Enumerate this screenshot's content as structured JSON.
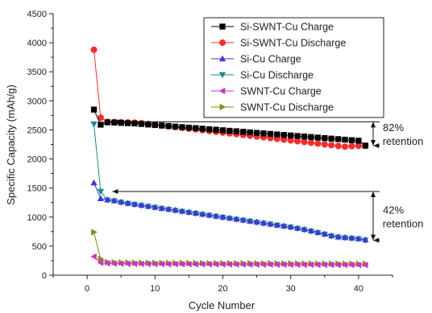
{
  "chart_data": {
    "type": "scatter",
    "xlabel": "Cycle Number",
    "ylabel": "Specific Capacity (mAh/g)",
    "xlim": [
      -5,
      45
    ],
    "ylim": [
      0,
      4500
    ],
    "xticks": [
      0,
      10,
      20,
      30,
      40
    ],
    "yticks": [
      0,
      500,
      1000,
      1500,
      2000,
      2500,
      3000,
      3500,
      4000,
      4500
    ],
    "grid": false,
    "legend_position": "top-right",
    "series": [
      {
        "name": "Si-SWNT-Cu Charge",
        "color": "#000000",
        "marker": "square",
        "x": [
          1,
          2,
          3,
          4,
          5,
          6,
          7,
          8,
          9,
          10,
          11,
          12,
          13,
          14,
          15,
          16,
          17,
          18,
          19,
          20,
          21,
          22,
          23,
          24,
          25,
          26,
          27,
          28,
          29,
          30,
          31,
          32,
          33,
          34,
          35,
          36,
          37,
          38,
          39,
          40,
          41
        ],
        "y": [
          2850,
          2590,
          2630,
          2626,
          2621,
          2616,
          2611,
          2602,
          2593,
          2584,
          2575,
          2566,
          2557,
          2548,
          2539,
          2530,
          2521,
          2512,
          2503,
          2494,
          2485,
          2476,
          2467,
          2458,
          2449,
          2440,
          2431,
          2422,
          2413,
          2404,
          2395,
          2386,
          2377,
          2368,
          2359,
          2350,
          2341,
          2332,
          2323,
          2314,
          2230
        ]
      },
      {
        "name": "Si-SWNT-Cu Discharge",
        "color": "#ff2a2a",
        "marker": "circle",
        "x": [
          1,
          2,
          3,
          4,
          5,
          6,
          7,
          8,
          9,
          10,
          11,
          12,
          13,
          14,
          15,
          16,
          17,
          18,
          19,
          20,
          21,
          22,
          23,
          24,
          25,
          26,
          27,
          28,
          29,
          30,
          31,
          32,
          33,
          34,
          35,
          36,
          37,
          38,
          39,
          40,
          41
        ],
        "y": [
          3880,
          2710,
          2640,
          2637,
          2633,
          2629,
          2625,
          2616,
          2602,
          2589,
          2575,
          2562,
          2548,
          2535,
          2521,
          2508,
          2494,
          2481,
          2467,
          2454,
          2440,
          2427,
          2413,
          2400,
          2386,
          2373,
          2359,
          2346,
          2332,
          2319,
          2305,
          2292,
          2278,
          2265,
          2251,
          2238,
          2224,
          2211,
          2220,
          2225,
          2225
        ]
      },
      {
        "name": "Si-Cu Charge",
        "color": "#3a3ad6",
        "marker": "triangle-up",
        "x": [
          1,
          2,
          3,
          4,
          5,
          6,
          7,
          8,
          9,
          10,
          11,
          12,
          13,
          14,
          15,
          16,
          17,
          18,
          19,
          20,
          21,
          22,
          23,
          24,
          25,
          26,
          27,
          28,
          29,
          30,
          31,
          32,
          33,
          34,
          35,
          36,
          37,
          38,
          39,
          40,
          41
        ],
        "y": [
          1590,
          1320,
          1300,
          1284,
          1260,
          1240,
          1222,
          1205,
          1188,
          1171,
          1154,
          1137,
          1120,
          1103,
          1086,
          1069,
          1052,
          1035,
          1018,
          1001,
          984,
          967,
          950,
          933,
          916,
          899,
          882,
          865,
          848,
          831,
          810,
          789,
          763,
          737,
          711,
          680,
          660,
          650,
          640,
          630,
          610
        ]
      },
      {
        "name": "Si-Cu Discharge",
        "color": "#1a8a8a",
        "marker": "triangle-down",
        "x": [
          1,
          2,
          3,
          4,
          5,
          6,
          7,
          8,
          9,
          10,
          11,
          12,
          13,
          14,
          15,
          16,
          17,
          18,
          19,
          20,
          21,
          22,
          23,
          24,
          25,
          26,
          27,
          28,
          29,
          30,
          31,
          32,
          33,
          34,
          35,
          36,
          37,
          38,
          39,
          40,
          41
        ],
        "y": [
          2600,
          1440,
          1290,
          1276,
          1252,
          1232,
          1214,
          1197,
          1180,
          1163,
          1146,
          1129,
          1112,
          1095,
          1078,
          1061,
          1044,
          1027,
          1010,
          993,
          976,
          959,
          942,
          925,
          908,
          891,
          874,
          857,
          840,
          823,
          802,
          781,
          755,
          729,
          703,
          672,
          652,
          642,
          632,
          622,
          600
        ]
      },
      {
        "name": "SWNT-Cu Charge",
        "color": "#cc33cc",
        "marker": "triangle-left",
        "x": [
          1,
          2,
          3,
          4,
          5,
          6,
          7,
          8,
          9,
          10,
          11,
          12,
          13,
          14,
          15,
          16,
          17,
          18,
          19,
          20,
          21,
          22,
          23,
          24,
          25,
          26,
          27,
          28,
          29,
          30,
          31,
          32,
          33,
          34,
          35,
          36,
          37,
          38,
          39,
          40,
          41
        ],
        "y": [
          320,
          215,
          205,
          200,
          198,
          196,
          195,
          194,
          193,
          192,
          191,
          190,
          190,
          189,
          189,
          188,
          188,
          187,
          187,
          186,
          186,
          185,
          185,
          184,
          184,
          183,
          183,
          182,
          182,
          181,
          181,
          180,
          180,
          179,
          179,
          178,
          178,
          177,
          177,
          176,
          176
        ]
      },
      {
        "name": "SWNT-Cu Discharge",
        "color": "#8a8a1a",
        "marker": "triangle-right",
        "x": [
          1,
          2,
          3,
          4,
          5,
          6,
          7,
          8,
          9,
          10,
          11,
          12,
          13,
          14,
          15,
          16,
          17,
          18,
          19,
          20,
          21,
          22,
          23,
          24,
          25,
          26,
          27,
          28,
          29,
          30,
          31,
          32,
          33,
          34,
          35,
          36,
          37,
          38,
          39,
          40,
          41
        ],
        "y": [
          740,
          280,
          225,
          220,
          218,
          216,
          214,
          213,
          212,
          211,
          210,
          209,
          209,
          208,
          208,
          207,
          207,
          206,
          206,
          205,
          205,
          204,
          204,
          203,
          203,
          202,
          202,
          201,
          201,
          200,
          200,
          199,
          199,
          198,
          198,
          197,
          197,
          196,
          196,
          195,
          195
        ]
      }
    ],
    "annotations": [
      {
        "line1": "82%",
        "line2": "retention",
        "x_from": 3,
        "y_top": 2640,
        "y_bottom": 2230
      },
      {
        "line1": "42%",
        "line2": "retention",
        "x_from": 3,
        "y_top": 1440,
        "y_bottom": 600
      }
    ]
  }
}
